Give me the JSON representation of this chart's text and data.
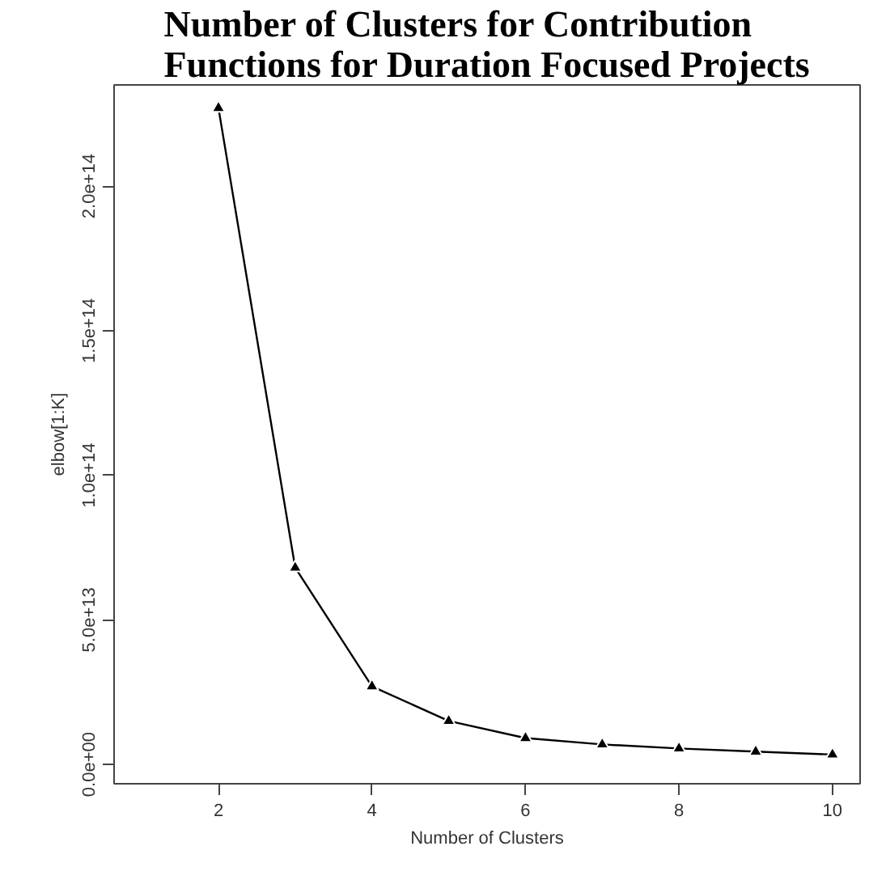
{
  "chart_data": {
    "type": "line",
    "title": "Number of Clusters for Contribution\nFunctions for Duration Focused Projects",
    "xlabel": "Number of Clusters",
    "ylabel": "elbow[1:K]",
    "x": [
      2,
      3,
      4,
      5,
      6,
      7,
      8,
      9,
      10
    ],
    "series": [
      {
        "color": "#000000",
        "values": [
          227000000000000.0,
          68000000000000.0,
          27000000000000.0,
          15000000000000.0,
          9100000000000.0,
          6900000000000.0,
          5500000000000.0,
          4400000000000.0,
          3400000000000.0
        ]
      }
    ],
    "xlim": [
      0.64,
      10.36
    ],
    "ylim": [
      -6700000000000.0,
      235000000000000.0
    ],
    "xticks": [
      2,
      4,
      6,
      8,
      10
    ],
    "yticks": [
      {
        "value": 0,
        "label": "0.0e+00"
      },
      {
        "value": 50000000000000.0,
        "label": "5.0e+13"
      },
      {
        "value": 100000000000000.0,
        "label": "1.0e+14"
      },
      {
        "value": 150000000000000.0,
        "label": "1.5e+14"
      },
      {
        "value": 200000000000000.0,
        "label": "2.0e+14"
      }
    ],
    "marker": "triangle",
    "line_style": "solid",
    "grid": false
  }
}
